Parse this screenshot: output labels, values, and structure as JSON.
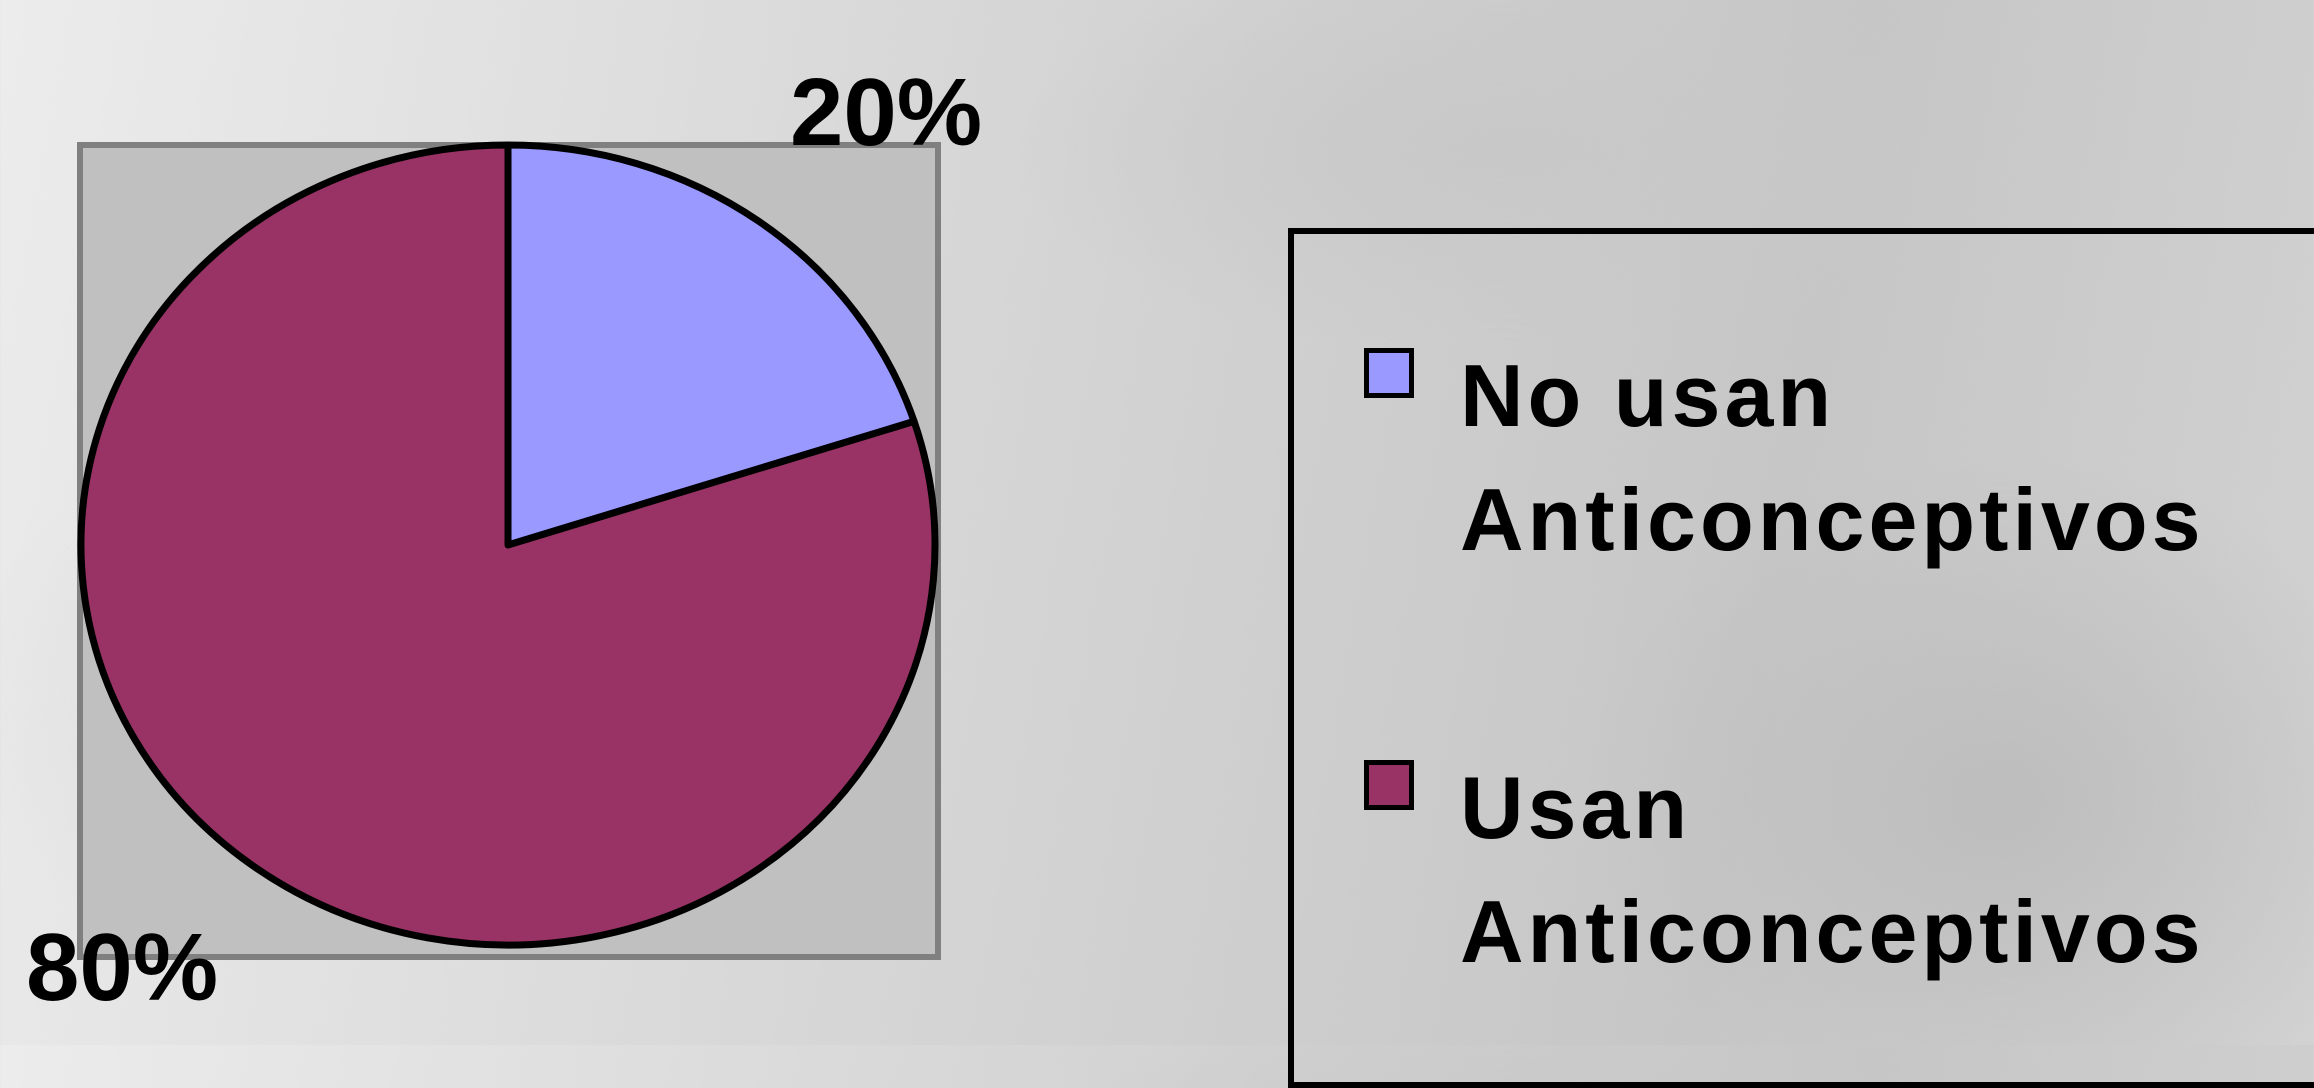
{
  "chart_data": {
    "type": "pie",
    "slices": [
      {
        "label": "No usan Anticonceptivos",
        "value": 20,
        "color": "#9999FF",
        "value_label": "20%"
      },
      {
        "label": "Usan Anticonceptivos",
        "value": 80,
        "color": "#993366",
        "value_label": "80%"
      }
    ],
    "start_angle": "top, clockwise",
    "legend_placement": "right",
    "plot_area_color": "#C0C0C0"
  }
}
